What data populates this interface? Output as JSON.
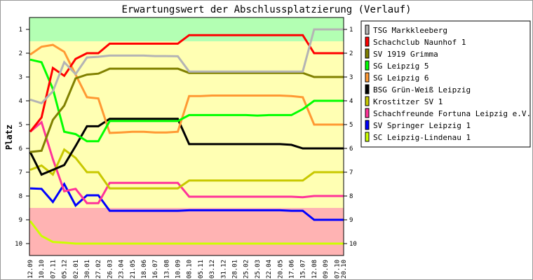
{
  "chart_data": {
    "type": "line",
    "title": "Erwartungswert der Abschlussplatzierung (Verlauf)",
    "ylabel": "Platz",
    "xlabel": "",
    "ylim": [
      0.5,
      10.5
    ],
    "y_inverted": true,
    "yticks": [
      1,
      2,
      3,
      4,
      5,
      6,
      7,
      8,
      9,
      10
    ],
    "legend_position": "right",
    "bands": [
      {
        "from": 0.5,
        "to": 1.5,
        "color": "#b3ffb3"
      },
      {
        "from": 1.5,
        "to": 8.5,
        "color": "#ffffb3"
      },
      {
        "from": 8.5,
        "to": 10.5,
        "color": "#ffb3b3"
      }
    ],
    "categories": [
      "12.09",
      "10.10",
      "07.11",
      "05.12",
      "02.01",
      "30.01",
      "27.02",
      "26.03",
      "23.04",
      "21.05",
      "18.06",
      "16.07",
      "13.08",
      "10.09",
      "08.10",
      "05.11",
      "03.12",
      "31.12",
      "28.01",
      "25.02",
      "25.03",
      "22.04",
      "20.05",
      "17.06",
      "15.07",
      "12.08",
      "09.09",
      "07.10",
      "20.10"
    ],
    "x": [
      0,
      1,
      2,
      3,
      4,
      5,
      6,
      7,
      8,
      9,
      10,
      11,
      12,
      13,
      14,
      15,
      16,
      17,
      18,
      19,
      20,
      21,
      22,
      23,
      24,
      25,
      26,
      27,
      27.6
    ],
    "series": [
      {
        "name": "TSG Markkleeberg",
        "color": "#b4b4b4",
        "values": [
          3.95,
          4.1,
          3.6,
          2.38,
          2.88,
          2.18,
          2.15,
          2.1,
          2.1,
          2.1,
          2.1,
          2.12,
          2.12,
          2.13,
          2.77,
          2.77,
          2.77,
          2.77,
          2.77,
          2.77,
          2.77,
          2.77,
          2.77,
          2.77,
          2.77,
          1,
          1,
          1,
          1
        ]
      },
      {
        "name": "Schachclub Naunhof 1",
        "color": "#ff0000",
        "values": [
          5.3,
          4.7,
          2.62,
          2.95,
          2.24,
          2.0,
          2.0,
          1.6,
          1.6,
          1.6,
          1.6,
          1.6,
          1.6,
          1.6,
          1.24,
          1.24,
          1.24,
          1.24,
          1.24,
          1.24,
          1.24,
          1.24,
          1.24,
          1.24,
          1.24,
          2,
          2,
          2,
          2
        ]
      },
      {
        "name": "SV 1919 Grimma",
        "color": "#808000",
        "values": [
          6.15,
          6.1,
          4.8,
          4.2,
          3.06,
          2.9,
          2.86,
          2.65,
          2.65,
          2.65,
          2.65,
          2.65,
          2.65,
          2.65,
          2.83,
          2.83,
          2.83,
          2.83,
          2.83,
          2.83,
          2.83,
          2.83,
          2.83,
          2.83,
          2.83,
          3,
          3,
          3,
          3
        ]
      },
      {
        "name": "SG Leipzig 5",
        "color": "#00ff00",
        "values": [
          2.27,
          2.38,
          3.5,
          5.3,
          5.4,
          5.7,
          5.7,
          4.85,
          4.85,
          4.85,
          4.85,
          4.85,
          4.85,
          4.85,
          4.6,
          4.6,
          4.6,
          4.6,
          4.6,
          4.6,
          4.62,
          4.6,
          4.6,
          4.6,
          4.35,
          4,
          4,
          4,
          4
        ]
      },
      {
        "name": "SG Leipzig 6",
        "color": "#ff9933",
        "values": [
          2.06,
          1.73,
          1.65,
          1.94,
          2.9,
          3.85,
          3.9,
          5.35,
          5.33,
          5.3,
          5.3,
          5.33,
          5.33,
          5.3,
          3.8,
          3.8,
          3.78,
          3.78,
          3.78,
          3.78,
          3.78,
          3.78,
          3.78,
          3.8,
          3.85,
          5,
          5,
          5,
          5
        ]
      },
      {
        "name": "BSG Grün-Weiß Leipzig",
        "color": "#000000",
        "values": [
          6.15,
          7.1,
          6.9,
          6.7,
          5.9,
          5.07,
          5.07,
          4.76,
          4.76,
          4.76,
          4.76,
          4.76,
          4.76,
          4.76,
          5.82,
          5.82,
          5.82,
          5.82,
          5.82,
          5.82,
          5.82,
          5.82,
          5.82,
          5.85,
          6,
          6,
          6,
          6,
          6
        ]
      },
      {
        "name": "Krostitzer SV 1",
        "color": "#c8c800",
        "values": [
          6.9,
          6.72,
          7.1,
          6.05,
          6.4,
          7.0,
          7.0,
          7.68,
          7.68,
          7.68,
          7.68,
          7.68,
          7.68,
          7.68,
          7.35,
          7.35,
          7.35,
          7.35,
          7.35,
          7.35,
          7.35,
          7.35,
          7.35,
          7.35,
          7.35,
          7,
          7,
          7,
          7
        ]
      },
      {
        "name": "Schachfreunde Fortuna Leipzig e.V. 2",
        "color": "#ff3399",
        "values": [
          5.3,
          4.9,
          6.45,
          7.8,
          7.7,
          8.3,
          8.3,
          7.45,
          7.45,
          7.45,
          7.45,
          7.45,
          7.45,
          7.45,
          8.03,
          8.03,
          8.03,
          8.03,
          8.03,
          8.03,
          8.03,
          8.03,
          8.03,
          8.03,
          8.05,
          8,
          8,
          8,
          8
        ]
      },
      {
        "name": "SV Springer Leipzig 1",
        "color": "#0000ff",
        "values": [
          7.68,
          7.7,
          8.25,
          7.5,
          8.4,
          7.97,
          7.97,
          8.62,
          8.62,
          8.62,
          8.62,
          8.62,
          8.62,
          8.62,
          8.6,
          8.6,
          8.6,
          8.6,
          8.6,
          8.6,
          8.6,
          8.6,
          8.6,
          8.62,
          8.62,
          9,
          9,
          9,
          9
        ]
      },
      {
        "name": "SC Leipzig-Lindenau 1",
        "color": "#ccff00",
        "values": [
          9.05,
          9.68,
          9.93,
          9.96,
          10,
          10,
          10,
          10,
          10,
          10,
          10,
          10,
          10,
          10,
          10,
          10,
          10,
          10,
          10,
          10,
          10,
          10,
          10,
          10,
          10,
          10,
          10,
          10,
          10
        ]
      }
    ]
  }
}
